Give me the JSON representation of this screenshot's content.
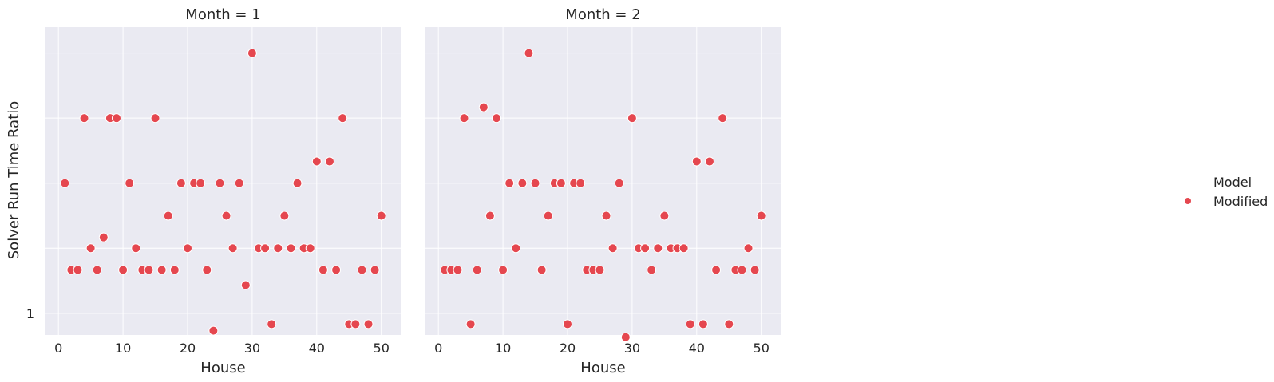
{
  "chart_data": {
    "type": "scatter",
    "ylabel": "Solver Run Time Ratio",
    "xlabel": "House",
    "x_ticks": [
      0,
      10,
      20,
      30,
      40,
      50
    ],
    "y_tick_labels": [
      {
        "value": 1,
        "label": "1"
      }
    ],
    "xlim": [
      -2,
      53
    ],
    "ylim": [
      0.95,
      1.66
    ],
    "y_gridlines": [
      1.0,
      1.15,
      1.3,
      1.45,
      1.6
    ],
    "grid": true,
    "legend": {
      "title": "Model",
      "placement": "right",
      "entries": [
        {
          "name": "Modified",
          "color": "#e5474f"
        }
      ]
    },
    "colors": {
      "point": "#e5474f",
      "panel": "#eaeaf2"
    },
    "panels": [
      {
        "title": "Month = 1",
        "series": [
          {
            "name": "Modified",
            "x": [
              1,
              2,
              3,
              4,
              5,
              6,
              7,
              8,
              9,
              10,
              11,
              12,
              13,
              14,
              15,
              16,
              17,
              18,
              19,
              20,
              21,
              22,
              23,
              24,
              25,
              26,
              27,
              28,
              29,
              30,
              31,
              32,
              33,
              34,
              35,
              36,
              37,
              38,
              39,
              40,
              41,
              42,
              43,
              44,
              45,
              46,
              47,
              48,
              49,
              50
            ],
            "y": [
              1.3,
              1.1,
              1.1,
              1.45,
              1.15,
              1.1,
              1.175,
              1.45,
              1.45,
              1.1,
              1.3,
              1.15,
              1.1,
              1.1,
              1.45,
              1.1,
              1.225,
              1.1,
              1.3,
              1.15,
              1.3,
              1.3,
              1.1,
              0.96,
              1.3,
              1.225,
              1.15,
              1.3,
              1.065,
              1.6,
              1.15,
              1.15,
              0.975,
              1.15,
              1.225,
              1.15,
              1.3,
              1.15,
              1.15,
              1.35,
              1.1,
              1.35,
              1.1,
              1.45,
              0.975,
              0.975,
              1.1,
              0.975,
              1.1,
              1.225
            ]
          }
        ]
      },
      {
        "title": "Month = 2",
        "series": [
          {
            "name": "Modified",
            "x": [
              1,
              2,
              3,
              4,
              5,
              6,
              7,
              8,
              9,
              10,
              11,
              12,
              13,
              14,
              15,
              16,
              17,
              18,
              19,
              20,
              21,
              22,
              23,
              24,
              25,
              26,
              27,
              28,
              29,
              30,
              31,
              32,
              33,
              34,
              35,
              36,
              37,
              38,
              39,
              40,
              41,
              42,
              43,
              44,
              45,
              46,
              47,
              48,
              49,
              50
            ],
            "y": [
              1.1,
              1.1,
              1.1,
              1.45,
              0.975,
              1.1,
              1.475,
              1.225,
              1.45,
              1.1,
              1.3,
              1.15,
              1.3,
              1.6,
              1.3,
              1.1,
              1.225,
              1.3,
              1.3,
              0.975,
              1.3,
              1.3,
              1.1,
              1.1,
              1.1,
              1.225,
              1.15,
              1.3,
              0.945,
              1.45,
              1.15,
              1.15,
              1.1,
              1.15,
              1.225,
              1.15,
              1.15,
              1.15,
              0.975,
              1.35,
              0.975,
              1.35,
              1.1,
              1.45,
              0.975,
              1.1,
              1.1,
              1.15,
              1.1,
              1.225
            ]
          }
        ]
      }
    ]
  }
}
